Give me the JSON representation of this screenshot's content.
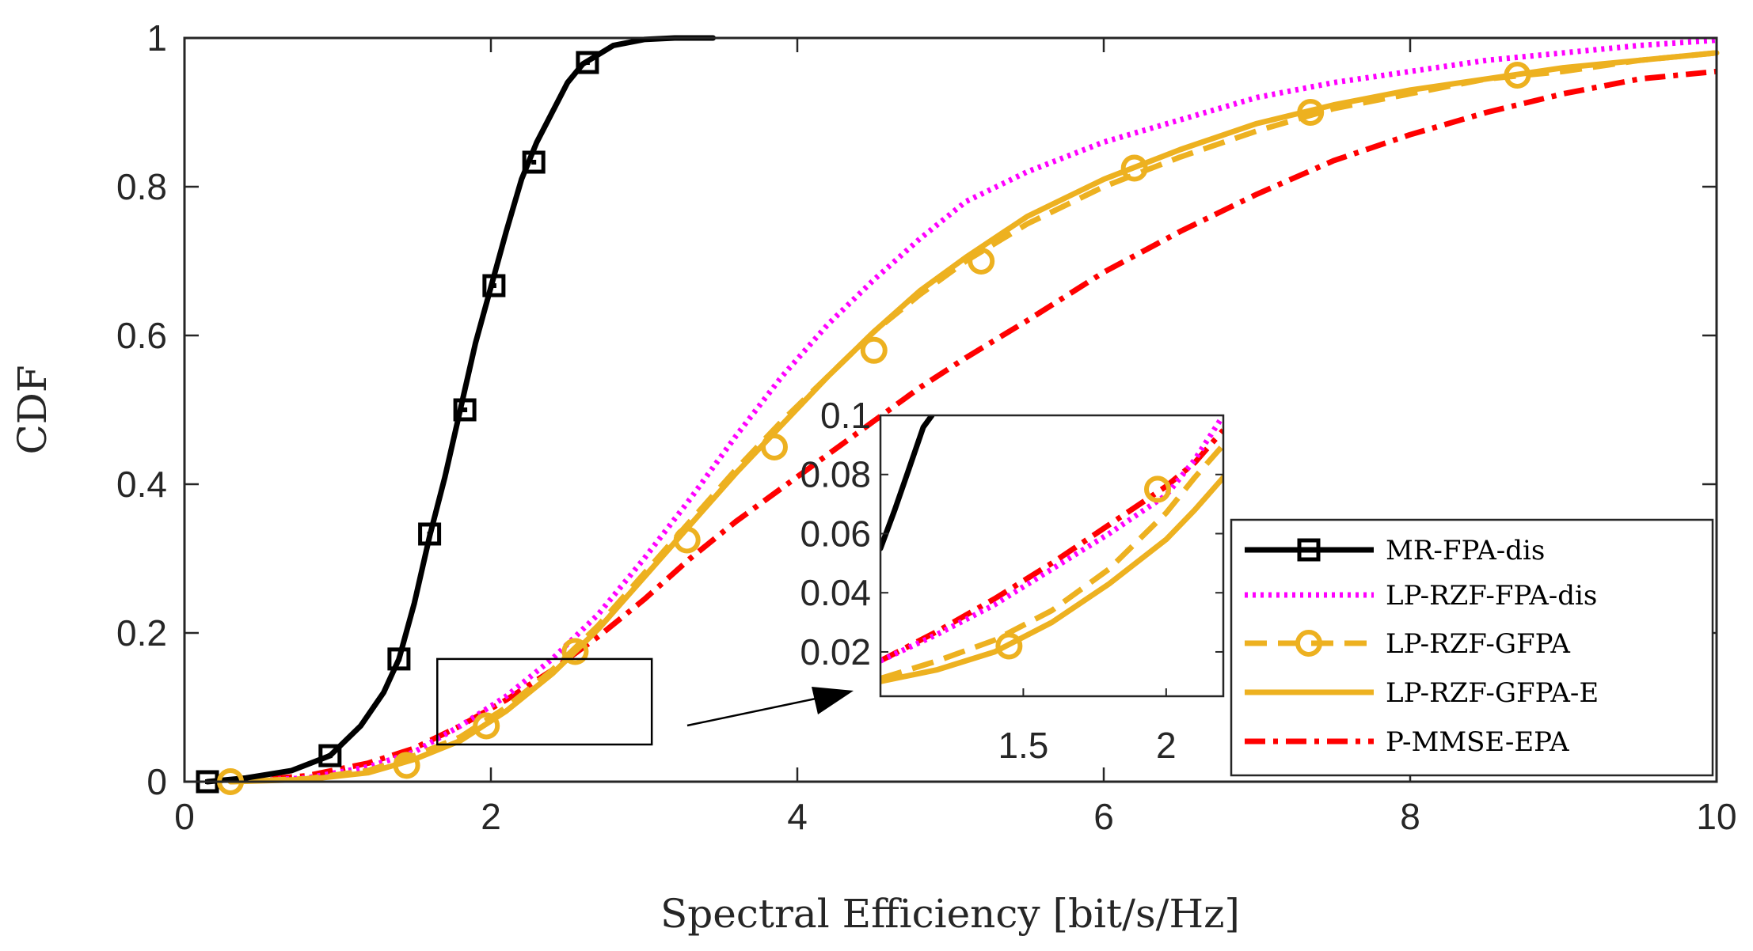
{
  "chart_data": {
    "type": "line",
    "title": "",
    "xlabel": "Spectral Efficiency [bit/s/Hz]",
    "ylabel": "CDF",
    "xlim": [
      0,
      10
    ],
    "ylim": [
      0,
      1
    ],
    "xticks": [
      "0",
      "2",
      "4",
      "6",
      "8",
      "10"
    ],
    "yticks": [
      "0",
      "0.2",
      "0.4",
      "0.6",
      "0.8",
      "1"
    ],
    "grid": false,
    "legend_position": "bottom-right",
    "series": [
      {
        "name": "MR-FPA-dis",
        "color": "#000000",
        "style": "solid-square-markers",
        "x": [
          0.15,
          0.4,
          0.7,
          0.95,
          1.15,
          1.3,
          1.4,
          1.5,
          1.6,
          1.7,
          1.8,
          1.9,
          2.0,
          2.1,
          2.2,
          2.3,
          2.4,
          2.5,
          2.6,
          2.8,
          3.0,
          3.2,
          3.45
        ],
        "y": [
          0.0,
          0.005,
          0.015,
          0.035,
          0.075,
          0.12,
          0.165,
          0.24,
          0.33,
          0.41,
          0.5,
          0.59,
          0.665,
          0.74,
          0.81,
          0.86,
          0.9,
          0.94,
          0.965,
          0.99,
          0.998,
          1.0,
          1.0
        ],
        "markers_x": [
          0.15,
          0.95,
          1.4,
          1.6,
          1.83,
          2.02,
          2.28,
          2.63
        ],
        "markers_y": [
          0.0,
          0.035,
          0.165,
          0.333,
          0.5,
          0.667,
          0.833,
          0.967
        ]
      },
      {
        "name": "LP-RZF-FPA-dis",
        "color": "#ff00ff",
        "style": "dotted",
        "x": [
          0.3,
          0.8,
          1.2,
          1.5,
          1.8,
          2.1,
          2.4,
          2.7,
          3.0,
          3.3,
          3.6,
          3.9,
          4.2,
          4.5,
          4.8,
          5.1,
          5.5,
          6.0,
          6.5,
          7.0,
          7.5,
          8.0,
          8.5,
          9.0,
          9.5,
          10.0
        ],
        "y": [
          0.0,
          0.005,
          0.02,
          0.04,
          0.075,
          0.115,
          0.165,
          0.225,
          0.3,
          0.38,
          0.465,
          0.545,
          0.615,
          0.675,
          0.73,
          0.78,
          0.82,
          0.86,
          0.89,
          0.92,
          0.94,
          0.955,
          0.97,
          0.98,
          0.99,
          0.997
        ]
      },
      {
        "name": "LP-RZF-GFPA",
        "color": "#edb120",
        "style": "dashed-circle-markers",
        "x": [
          0.3,
          0.8,
          1.2,
          1.5,
          1.8,
          2.1,
          2.4,
          2.7,
          3.0,
          3.3,
          3.6,
          3.9,
          4.2,
          4.5,
          4.8,
          5.1,
          5.5,
          6.0,
          6.5,
          7.0,
          7.5,
          8.0,
          8.5,
          9.0,
          9.5,
          10.0
        ],
        "y": [
          0.0,
          0.004,
          0.015,
          0.035,
          0.06,
          0.1,
          0.15,
          0.21,
          0.28,
          0.35,
          0.42,
          0.485,
          0.545,
          0.605,
          0.655,
          0.7,
          0.75,
          0.8,
          0.84,
          0.875,
          0.905,
          0.925,
          0.945,
          0.955,
          0.97,
          0.98
        ],
        "markers_x": [
          0.3,
          1.45,
          1.97,
          2.55,
          3.28,
          3.85,
          4.5,
          5.2,
          6.2,
          7.35,
          8.7
        ],
        "markers_y": [
          0.0,
          0.022,
          0.075,
          0.175,
          0.325,
          0.45,
          0.58,
          0.7,
          0.825,
          0.9,
          0.95
        ]
      },
      {
        "name": "LP-RZF-GFPA-E",
        "color": "#edb120",
        "style": "solid",
        "x": [
          0.3,
          0.8,
          1.2,
          1.5,
          1.8,
          2.1,
          2.4,
          2.7,
          3.0,
          3.3,
          3.6,
          3.9,
          4.2,
          4.5,
          4.8,
          5.1,
          5.5,
          6.0,
          6.5,
          7.0,
          7.5,
          8.0,
          8.5,
          9.0,
          9.5,
          10.0
        ],
        "y": [
          0.0,
          0.003,
          0.012,
          0.03,
          0.055,
          0.095,
          0.145,
          0.205,
          0.275,
          0.345,
          0.415,
          0.48,
          0.545,
          0.605,
          0.66,
          0.705,
          0.76,
          0.81,
          0.85,
          0.885,
          0.91,
          0.93,
          0.945,
          0.96,
          0.97,
          0.98
        ]
      },
      {
        "name": "P-MMSE-EPA",
        "color": "#ff0000",
        "style": "dash-dot",
        "x": [
          0.3,
          0.8,
          1.2,
          1.5,
          1.8,
          2.1,
          2.4,
          2.7,
          3.0,
          3.3,
          3.6,
          3.9,
          4.2,
          4.5,
          4.8,
          5.1,
          5.5,
          6.0,
          6.5,
          7.0,
          7.5,
          8.0,
          8.5,
          9.0,
          9.5,
          10.0
        ],
        "y": [
          0.0,
          0.008,
          0.025,
          0.045,
          0.075,
          0.11,
          0.15,
          0.195,
          0.245,
          0.3,
          0.35,
          0.395,
          0.44,
          0.485,
          0.53,
          0.57,
          0.62,
          0.685,
          0.74,
          0.79,
          0.835,
          0.87,
          0.9,
          0.925,
          0.945,
          0.955
        ]
      }
    ],
    "inset": {
      "xlim": [
        1.0,
        2.2
      ],
      "ylim": [
        0.005,
        0.1
      ],
      "xticks": [
        "1.5",
        "2"
      ],
      "yticks": [
        "0.02",
        "0.04",
        "0.06",
        "0.08",
        "0.1"
      ],
      "zoom_region_x": [
        1.65,
        3.05
      ],
      "zoom_region_y": [
        0.05,
        0.165
      ],
      "series": [
        {
          "name": "MR-FPA-dis",
          "x": [
            1.0,
            1.05,
            1.1,
            1.15,
            1.18
          ],
          "y": [
            0.055,
            0.068,
            0.082,
            0.096,
            0.1
          ]
        },
        {
          "name": "LP-RZF-FPA-dis",
          "x": [
            1.0,
            1.2,
            1.4,
            1.6,
            1.8,
            2.0,
            2.1,
            2.2
          ],
          "y": [
            0.017,
            0.026,
            0.036,
            0.048,
            0.06,
            0.073,
            0.085,
            0.1
          ]
        },
        {
          "name": "LP-RZF-GFPA",
          "x": [
            1.0,
            1.2,
            1.4,
            1.6,
            1.8,
            2.0,
            2.1,
            2.2
          ],
          "y": [
            0.011,
            0.017,
            0.024,
            0.034,
            0.048,
            0.067,
            0.079,
            0.09
          ],
          "markers_x": [
            1.45,
            1.97
          ],
          "markers_y": [
            0.022,
            0.075
          ]
        },
        {
          "name": "LP-RZF-GFPA-E",
          "x": [
            1.0,
            1.2,
            1.4,
            1.6,
            1.8,
            2.0,
            2.1,
            2.2
          ],
          "y": [
            0.01,
            0.014,
            0.02,
            0.03,
            0.043,
            0.058,
            0.068,
            0.079
          ]
        },
        {
          "name": "P-MMSE-EPA",
          "x": [
            1.0,
            1.2,
            1.4,
            1.6,
            1.8,
            2.0,
            2.1,
            2.2
          ],
          "y": [
            0.017,
            0.027,
            0.038,
            0.05,
            0.063,
            0.076,
            0.084,
            0.095
          ]
        }
      ]
    }
  }
}
